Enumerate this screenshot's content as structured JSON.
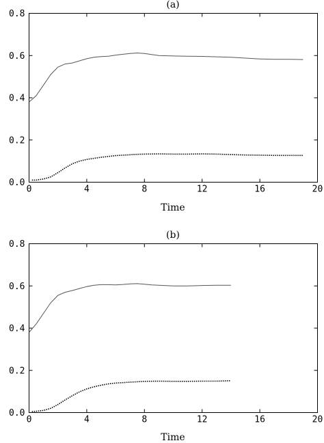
{
  "chart_data": [
    {
      "type": "line",
      "title": "(a)",
      "xlabel": "Time",
      "ylabel": "",
      "xlim": [
        0,
        20
      ],
      "ylim": [
        0,
        0.8
      ],
      "xticks": [
        0,
        4,
        8,
        12,
        16,
        20
      ],
      "yticks": [
        0.0,
        0.2,
        0.4,
        0.6,
        0.8
      ],
      "xtick_labels": [
        "0",
        "4",
        "8",
        "12",
        "16",
        "20"
      ],
      "ytick_labels": [
        "0.0",
        "0.2",
        "0.4",
        "0.6",
        "0.8"
      ],
      "grid": false,
      "series": [
        {
          "style": "solid",
          "color": "#555555",
          "x": [
            0,
            0.5,
            1,
            1.5,
            2,
            2.5,
            3,
            3.5,
            4,
            4.5,
            5,
            5.5,
            6,
            6.5,
            7,
            7.5,
            8,
            8.5,
            9,
            10,
            11,
            12,
            13,
            14,
            15,
            16,
            17,
            18,
            19
          ],
          "y": [
            0.38,
            0.41,
            0.46,
            0.51,
            0.545,
            0.56,
            0.565,
            0.575,
            0.585,
            0.592,
            0.595,
            0.597,
            0.602,
            0.606,
            0.61,
            0.612,
            0.61,
            0.605,
            0.6,
            0.598,
            0.597,
            0.596,
            0.594,
            0.592,
            0.588,
            0.584,
            0.582,
            0.582,
            0.581
          ]
        },
        {
          "style": "dotted",
          "color": "#000000",
          "x": [
            0.2,
            0.5,
            1,
            1.5,
            2,
            2.5,
            3,
            3.5,
            4,
            4.5,
            5,
            5.5,
            6,
            6.5,
            7,
            7.5,
            8,
            9,
            10,
            11,
            12,
            13,
            14,
            15,
            16,
            17,
            18,
            19
          ],
          "y": [
            0.01,
            0.01,
            0.015,
            0.025,
            0.045,
            0.068,
            0.087,
            0.1,
            0.108,
            0.113,
            0.118,
            0.122,
            0.126,
            0.128,
            0.13,
            0.132,
            0.133,
            0.134,
            0.133,
            0.133,
            0.134,
            0.133,
            0.131,
            0.129,
            0.128,
            0.127,
            0.127,
            0.127
          ]
        }
      ]
    },
    {
      "type": "line",
      "title": "(b)",
      "xlabel": "Time",
      "ylabel": "",
      "xlim": [
        0,
        20
      ],
      "ylim": [
        0,
        0.8
      ],
      "xticks": [
        0,
        4,
        8,
        12,
        16,
        20
      ],
      "yticks": [
        0.0,
        0.2,
        0.4,
        0.6,
        0.8
      ],
      "xtick_labels": [
        "0",
        "4",
        "8",
        "12",
        "16",
        "20"
      ],
      "ytick_labels": [
        "0.0",
        "0.2",
        "0.4",
        "0.6",
        "0.8"
      ],
      "grid": false,
      "series": [
        {
          "style": "solid",
          "color": "#555555",
          "x": [
            0,
            0.5,
            1,
            1.5,
            2,
            2.5,
            3,
            3.5,
            4,
            4.5,
            5,
            5.5,
            6,
            6.5,
            7,
            7.5,
            8,
            8.5,
            9,
            10,
            11,
            12,
            13,
            14
          ],
          "y": [
            0.38,
            0.42,
            0.47,
            0.52,
            0.555,
            0.57,
            0.578,
            0.588,
            0.597,
            0.603,
            0.606,
            0.606,
            0.605,
            0.607,
            0.61,
            0.611,
            0.608,
            0.605,
            0.603,
            0.6,
            0.6,
            0.602,
            0.603,
            0.603
          ]
        },
        {
          "style": "dotted",
          "color": "#000000",
          "x": [
            0.2,
            0.5,
            1,
            1.5,
            2,
            2.5,
            3,
            3.5,
            4,
            4.5,
            5,
            5.5,
            6,
            6.5,
            7,
            7.5,
            8,
            9,
            10,
            11,
            12,
            13,
            14
          ],
          "y": [
            0.005,
            0.006,
            0.01,
            0.02,
            0.038,
            0.06,
            0.08,
            0.098,
            0.112,
            0.122,
            0.13,
            0.136,
            0.14,
            0.142,
            0.144,
            0.146,
            0.148,
            0.149,
            0.148,
            0.148,
            0.149,
            0.149,
            0.151
          ]
        }
      ]
    }
  ]
}
